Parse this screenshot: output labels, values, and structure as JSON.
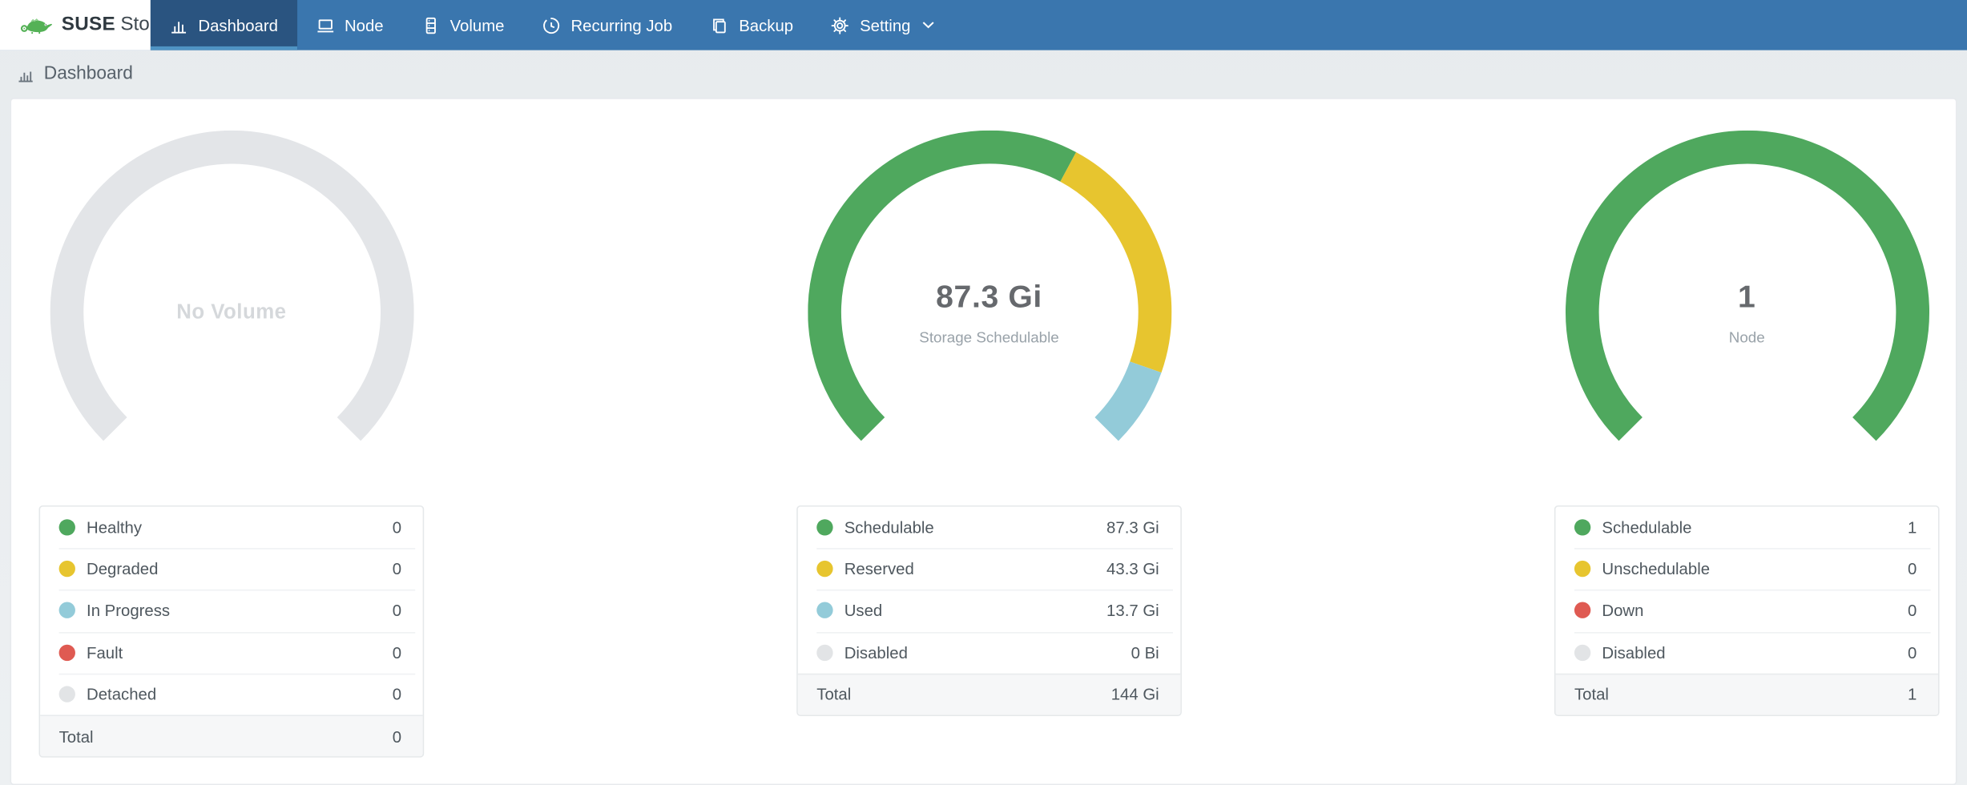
{
  "brand": {
    "suse": "SUSE",
    "product": "Storage"
  },
  "theme": {
    "navbar_color": "#3a76ae",
    "navbar_active_color": "#2a5480",
    "navbar_indicator_color": "#4f94c4"
  },
  "nav": {
    "items": [
      {
        "id": "dashboard",
        "label": "Dashboard",
        "icon": "bar-chart",
        "active": true
      },
      {
        "id": "node",
        "label": "Node",
        "icon": "laptop",
        "active": false
      },
      {
        "id": "volume",
        "label": "Volume",
        "icon": "server",
        "active": false
      },
      {
        "id": "recurring-job",
        "label": "Recurring Job",
        "icon": "clock",
        "active": false
      },
      {
        "id": "backup",
        "label": "Backup",
        "icon": "copy",
        "active": false
      },
      {
        "id": "setting",
        "label": "Setting",
        "icon": "gear",
        "active": false,
        "has_dropdown": true
      }
    ]
  },
  "page": {
    "title": "Dashboard"
  },
  "chart_data": [
    {
      "type": "gauge",
      "id": "volume",
      "center_label": "No Volume",
      "center_sublabel": "",
      "muted": true,
      "start_angle": 225,
      "sweep": 270,
      "segments": [
        {
          "name": "No Volume",
          "value": 1,
          "color": "#e3e5e8"
        }
      ],
      "legend": [
        {
          "label": "Healthy",
          "value": "0",
          "color": "#4fa85e"
        },
        {
          "label": "Degraded",
          "value": "0",
          "color": "#e7c52f"
        },
        {
          "label": "In Progress",
          "value": "0",
          "color": "#93cbd9"
        },
        {
          "label": "Fault",
          "value": "0",
          "color": "#df5a52"
        },
        {
          "label": "Detached",
          "value": "0",
          "color": "#e2e4e6"
        }
      ],
      "total": {
        "label": "Total",
        "value": "0"
      }
    },
    {
      "type": "gauge",
      "id": "storage",
      "center_label": "87.3 Gi",
      "center_sublabel": "Storage Schedulable",
      "muted": false,
      "start_angle": 225,
      "sweep": 270,
      "segments": [
        {
          "name": "Schedulable",
          "value": 87.3,
          "color": "#4fa85e"
        },
        {
          "name": "Reserved",
          "value": 43.3,
          "color": "#e7c52f"
        },
        {
          "name": "Used",
          "value": 13.7,
          "color": "#93cbd9"
        }
      ],
      "legend": [
        {
          "label": "Schedulable",
          "value": "87.3 Gi",
          "color": "#4fa85e"
        },
        {
          "label": "Reserved",
          "value": "43.3 Gi",
          "color": "#e7c52f"
        },
        {
          "label": "Used",
          "value": "13.7 Gi",
          "color": "#93cbd9"
        },
        {
          "label": "Disabled",
          "value": "0 Bi",
          "color": "#e2e4e6"
        }
      ],
      "total": {
        "label": "Total",
        "value": "144 Gi"
      }
    },
    {
      "type": "gauge",
      "id": "node",
      "center_label": "1",
      "center_sublabel": "Node",
      "muted": false,
      "start_angle": 225,
      "sweep": 270,
      "segments": [
        {
          "name": "Schedulable",
          "value": 1,
          "color": "#4fa85e"
        }
      ],
      "legend": [
        {
          "label": "Schedulable",
          "value": "1",
          "color": "#4fa85e"
        },
        {
          "label": "Unschedulable",
          "value": "0",
          "color": "#e7c52f"
        },
        {
          "label": "Down",
          "value": "0",
          "color": "#df5a52"
        },
        {
          "label": "Disabled",
          "value": "0",
          "color": "#e2e4e6"
        }
      ],
      "total": {
        "label": "Total",
        "value": "1"
      }
    }
  ]
}
